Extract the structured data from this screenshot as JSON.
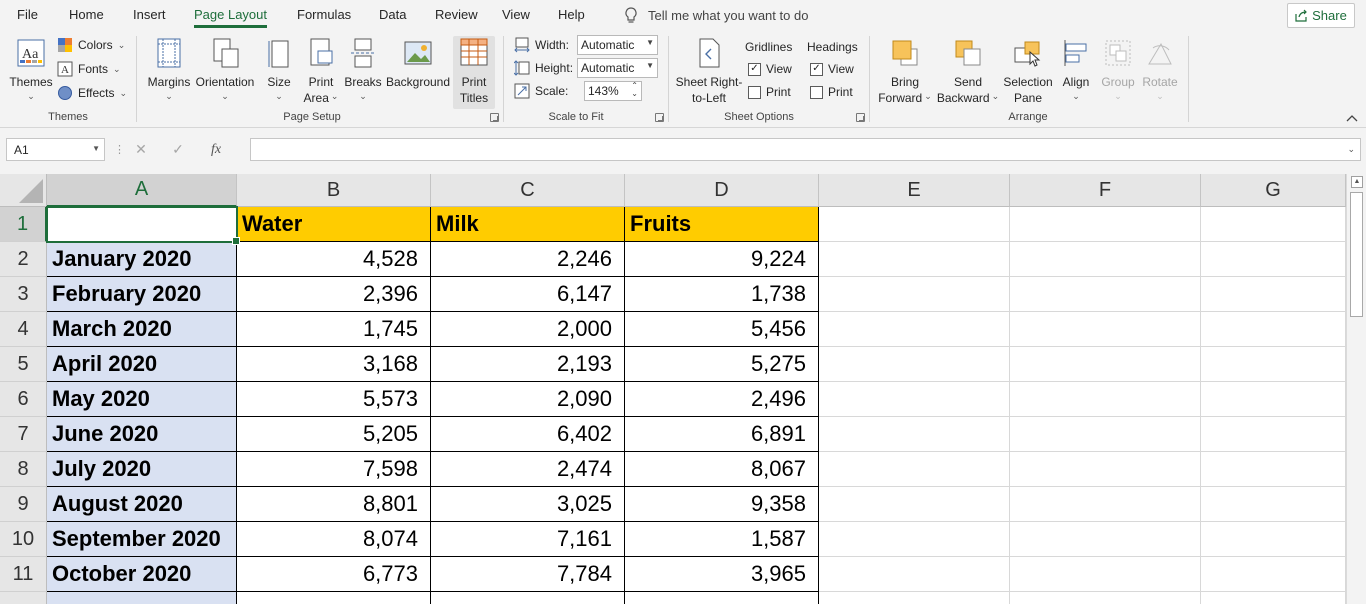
{
  "menu": {
    "tabs": [
      "File",
      "Home",
      "Insert",
      "Page Layout",
      "Formulas",
      "Data",
      "Review",
      "View",
      "Help"
    ],
    "active_tab": "Page Layout",
    "tell_me": "Tell me what you want to do",
    "share": "Share"
  },
  "ribbon": {
    "themes": {
      "themes_label": "Themes",
      "colors_label": "Colors",
      "fonts_label": "Fonts",
      "effects_label": "Effects",
      "group_label": "Themes"
    },
    "page_setup": {
      "margins": "Margins",
      "orientation": "Orientation",
      "size": "Size",
      "print_area_1": "Print",
      "print_area_2": "Area",
      "breaks": "Breaks",
      "background": "Background",
      "print_titles_1": "Print",
      "print_titles_2": "Titles",
      "group_label": "Page Setup"
    },
    "scale_to_fit": {
      "width_label": "Width:",
      "width_value": "Automatic",
      "height_label": "Height:",
      "height_value": "Automatic",
      "scale_label": "Scale:",
      "scale_value": "143%",
      "group_label": "Scale to Fit"
    },
    "sheet_options": {
      "sheet_rtl_1": "Sheet Right-",
      "sheet_rtl_2": "to-Left",
      "gridlines": "Gridlines",
      "headings": "Headings",
      "view": "View",
      "print": "Print",
      "gridlines_view_checked": true,
      "gridlines_print_checked": false,
      "headings_view_checked": true,
      "headings_print_checked": false,
      "group_label": "Sheet Options"
    },
    "arrange": {
      "bring_forward_1": "Bring",
      "bring_forward_2": "Forward",
      "send_backward_1": "Send",
      "send_backward_2": "Backward",
      "selection_pane_1": "Selection",
      "selection_pane_2": "Pane",
      "align": "Align",
      "group": "Group",
      "rotate": "Rotate",
      "group_label": "Arrange"
    }
  },
  "formula_bar": {
    "name_box": "A1",
    "formula": ""
  },
  "sheet": {
    "columns": [
      "A",
      "B",
      "C",
      "D",
      "E",
      "F",
      "G"
    ],
    "selected_column": "A",
    "headers": [
      "",
      "Water",
      "Milk",
      "Fruits"
    ],
    "rows": [
      {
        "num": "1"
      },
      {
        "num": "2",
        "label": "January 2020",
        "water": "4,528",
        "milk": "2,246",
        "fruits": "9,224"
      },
      {
        "num": "3",
        "label": "February 2020",
        "water": "2,396",
        "milk": "6,147",
        "fruits": "1,738"
      },
      {
        "num": "4",
        "label": "March 2020",
        "water": "1,745",
        "milk": "2,000",
        "fruits": "5,456"
      },
      {
        "num": "5",
        "label": "April 2020",
        "water": "3,168",
        "milk": "2,193",
        "fruits": "5,275"
      },
      {
        "num": "6",
        "label": "May 2020",
        "water": "5,573",
        "milk": "2,090",
        "fruits": "2,496"
      },
      {
        "num": "7",
        "label": "June 2020",
        "water": "5,205",
        "milk": "6,402",
        "fruits": "6,891"
      },
      {
        "num": "8",
        "label": "July 2020",
        "water": "7,598",
        "milk": "2,474",
        "fruits": "8,067"
      },
      {
        "num": "9",
        "label": "August 2020",
        "water": "8,801",
        "milk": "3,025",
        "fruits": "9,358"
      },
      {
        "num": "10",
        "label": "September 2020",
        "water": "8,074",
        "milk": "7,161",
        "fruits": "1,587"
      },
      {
        "num": "11",
        "label": "October 2020",
        "water": "6,773",
        "milk": "7,784",
        "fruits": "3,965"
      }
    ]
  },
  "colors": {
    "accent": "#1e6e3b",
    "header_fill": "#ffcc00",
    "label_fill": "#d9e1f2"
  }
}
